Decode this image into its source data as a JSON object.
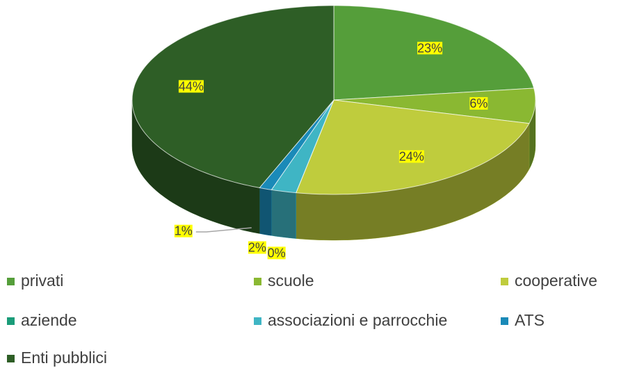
{
  "chart_data": {
    "type": "pie",
    "categories": [
      "privati",
      "scuole",
      "cooperative",
      "aziende",
      "associazioni e parrocchie",
      "ATS",
      "Enti pubblici"
    ],
    "values": [
      23,
      6,
      24,
      0,
      2,
      1,
      44
    ],
    "value_labels": [
      "23%",
      "6%",
      "24%",
      "0%",
      "2%",
      "1%",
      "44%"
    ],
    "colors": [
      "#559e3a",
      "#8ab832",
      "#bfcc3d",
      "#1a9c79",
      "#3fb5c4",
      "#1a8ab8",
      "#2e5e26"
    ],
    "legend": "bottom"
  }
}
